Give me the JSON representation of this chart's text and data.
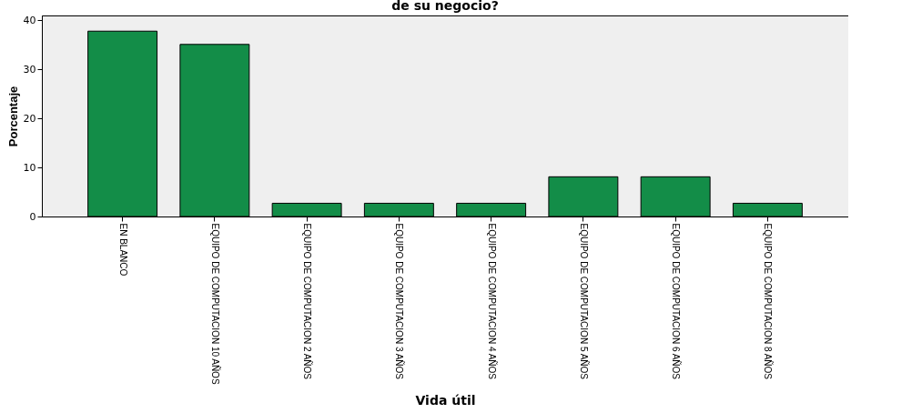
{
  "chart_data": {
    "type": "bar",
    "title": "de su negocio?",
    "xlabel": "Vida útil",
    "ylabel": "Porcentaje",
    "categories": [
      "EN BLANCO",
      "EQUIPO DE COMPUTACION 10  AÑOS",
      "EQUIPO DE COMPUTACION 2 AÑOS",
      "EQUIPO DE COMPUTACION 3 AÑOS",
      "EQUIPO DE COMPUTACION 4 AÑOS",
      "EQUIPO DE COMPUTACION 5 AÑOS",
      "EQUIPO DE COMPUTACION 6  AÑOS",
      "EQUIPO DE COMPUTACION 8  AÑOS"
    ],
    "values": [
      37.8,
      35.1,
      2.7,
      2.7,
      2.7,
      8.1,
      8.1,
      2.7
    ],
    "color": "#138d48",
    "ylim": [
      0,
      41
    ],
    "yticks": [
      0,
      10,
      20,
      30,
      40
    ],
    "grid": false
  }
}
